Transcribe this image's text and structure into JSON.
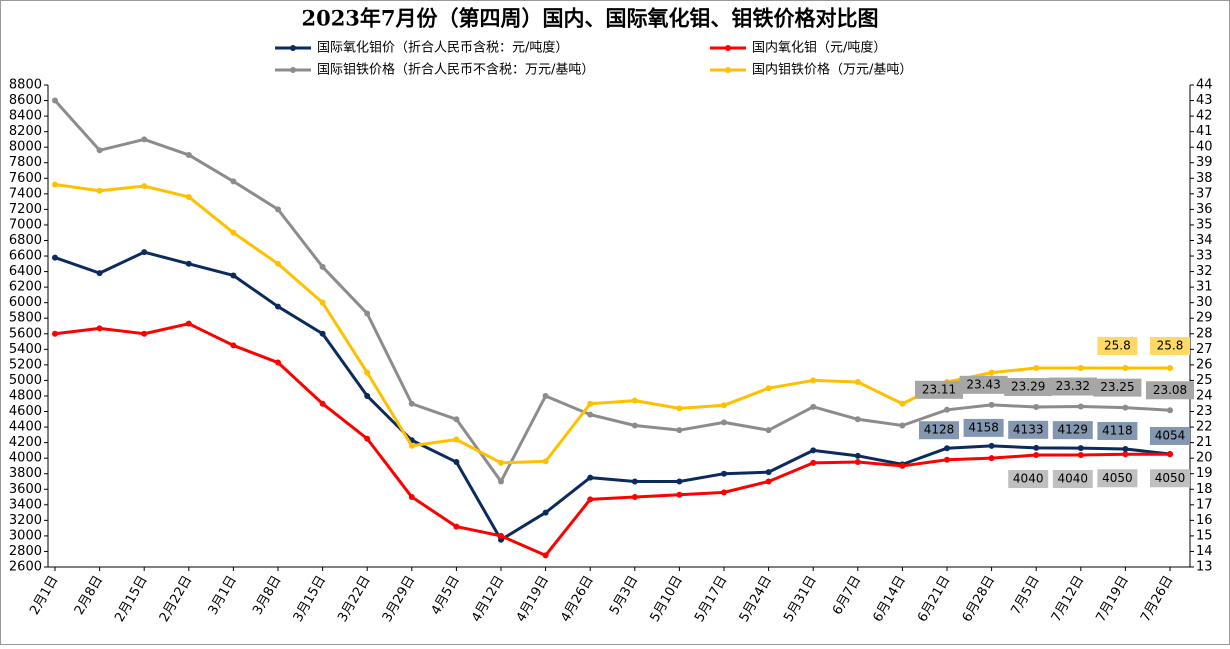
{
  "chart_data": {
    "type": "line",
    "title": "2023年7月份（第四周）国内、国际氧化钼、钼铁价格对比图",
    "categories": [
      "2月1日",
      "2月8日",
      "2月15日",
      "2月22日",
      "3月1日",
      "3月8日",
      "3月15日",
      "3月22日",
      "3月29日",
      "4月5日",
      "4月12日",
      "4月19日",
      "4月26日",
      "5月3日",
      "5月10日",
      "5月17日",
      "5月24日",
      "5月31日",
      "6月7日",
      "6月14日",
      "6月21日",
      "6月28日",
      "7月5日",
      "7月12日",
      "7月19日",
      "7月26日"
    ],
    "series": [
      {
        "name": "国际氧化钼价（折合人民币含税：元/吨度）",
        "color": "#0b2a5e",
        "axis": "y",
        "values": [
          6580,
          6380,
          6650,
          6500,
          6350,
          5950,
          5600,
          4800,
          4230,
          3950,
          2950,
          3300,
          3750,
          3700,
          3700,
          3800,
          3820,
          4100,
          4030,
          3920,
          4128,
          4158,
          4133,
          4129,
          4118,
          4054
        ],
        "value_labels": [
          null,
          null,
          null,
          null,
          null,
          null,
          null,
          null,
          null,
          null,
          null,
          null,
          null,
          null,
          null,
          null,
          null,
          null,
          null,
          null,
          "4128",
          "4158",
          "4133",
          "4129",
          "4118",
          "4054"
        ]
      },
      {
        "name": "国内氧化钼（元/吨度）",
        "color": "#ff0000",
        "axis": "y",
        "values": [
          5600,
          5670,
          5600,
          5730,
          5450,
          5230,
          4700,
          4250,
          3500,
          3120,
          3000,
          2750,
          3470,
          3500,
          3530,
          3560,
          3700,
          3940,
          3950,
          3900,
          3980,
          4000,
          4040,
          4040,
          4050,
          4050
        ],
        "value_labels": [
          null,
          null,
          null,
          null,
          null,
          null,
          null,
          null,
          null,
          null,
          null,
          null,
          null,
          null,
          null,
          null,
          null,
          null,
          null,
          null,
          null,
          null,
          "4040",
          "4040",
          "4050",
          "4050"
        ]
      },
      {
        "name": "国际钼铁价格（折合人民币不含税：万元/基吨）",
        "color": "#8c8c8c",
        "axis": "y2",
        "values": [
          43,
          39.8,
          40.5,
          39.5,
          37.8,
          36,
          32.3,
          29.3,
          23.5,
          22.5,
          18.5,
          24,
          22.8,
          22.1,
          21.8,
          22.3,
          21.8,
          23.3,
          22.5,
          22.1,
          23.11,
          23.43,
          23.29,
          23.32,
          23.25,
          23.08
        ],
        "value_labels": [
          null,
          null,
          null,
          null,
          null,
          null,
          null,
          null,
          null,
          null,
          null,
          null,
          null,
          null,
          null,
          null,
          null,
          null,
          null,
          null,
          "23.11",
          "23.43",
          "23.29",
          "23.32",
          "23.25",
          "23.08"
        ]
      },
      {
        "name": "国内钼铁价格（万元/基吨）",
        "color": "#ffc000",
        "axis": "y2",
        "values": [
          37.6,
          37.2,
          37.5,
          36.8,
          34.5,
          32.5,
          30,
          25.5,
          20.8,
          21.2,
          19.7,
          19.8,
          23.5,
          23.7,
          23.2,
          23.4,
          24.5,
          25,
          24.9,
          23.5,
          24.9,
          25.5,
          25.8,
          25.8,
          25.8,
          25.8
        ],
        "value_labels": [
          null,
          null,
          null,
          null,
          null,
          null,
          null,
          null,
          null,
          null,
          null,
          null,
          null,
          null,
          null,
          null,
          null,
          null,
          null,
          null,
          null,
          null,
          null,
          null,
          "25.8",
          "25.8"
        ]
      }
    ],
    "ylim": [
      2600,
      8800
    ],
    "yticks": [
      2600,
      2800,
      3000,
      3200,
      3400,
      3600,
      3800,
      4000,
      4200,
      4400,
      4600,
      4800,
      5000,
      5200,
      5400,
      5600,
      5800,
      6000,
      6200,
      6400,
      6600,
      6800,
      7000,
      7200,
      7400,
      7600,
      7800,
      8000,
      8200,
      8400,
      8600,
      8800
    ],
    "y2lim": [
      13,
      44
    ],
    "y2ticks": [
      13,
      14,
      15,
      16,
      17,
      18,
      19,
      20,
      21,
      22,
      23,
      24,
      25,
      26,
      27,
      28,
      29,
      30,
      31,
      32,
      33,
      34,
      35,
      36,
      37,
      38,
      39,
      40,
      41,
      42,
      43,
      44
    ]
  }
}
